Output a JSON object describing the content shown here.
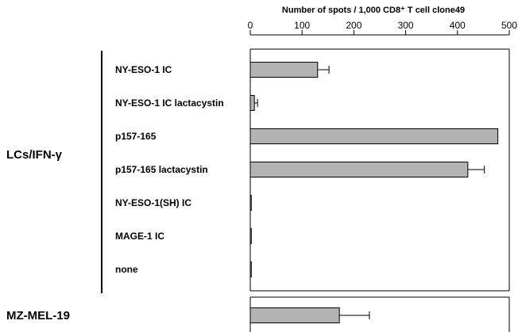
{
  "chart_data": {
    "type": "bar",
    "orientation": "horizontal",
    "axis_title": "Number of spots / 1,000 CD8⁺ T cell clone49",
    "xlim": [
      0,
      500
    ],
    "ticks": [
      0,
      100,
      200,
      300,
      400,
      500
    ],
    "groups": [
      {
        "label": "LCs/IFN-γ",
        "categories": [
          "NY-ESO-1 IC",
          "NY-ESO-1 IC lactacystin",
          "p157-165",
          "p157-165 lactacystin",
          "NY-ESO-1(SH) IC",
          "MAGE-1 IC",
          "none"
        ],
        "values": [
          130,
          8,
          478,
          420,
          2,
          2,
          2
        ],
        "errors": [
          22,
          6,
          0,
          32,
          0,
          0,
          0
        ]
      },
      {
        "label": "MZ-MEL-19",
        "categories": [
          ""
        ],
        "values": [
          172
        ],
        "errors": [
          58
        ]
      }
    ],
    "colors": {
      "bar_fill": "#b3b3b3",
      "bar_stroke": "#000000",
      "frame": "#000000"
    }
  }
}
